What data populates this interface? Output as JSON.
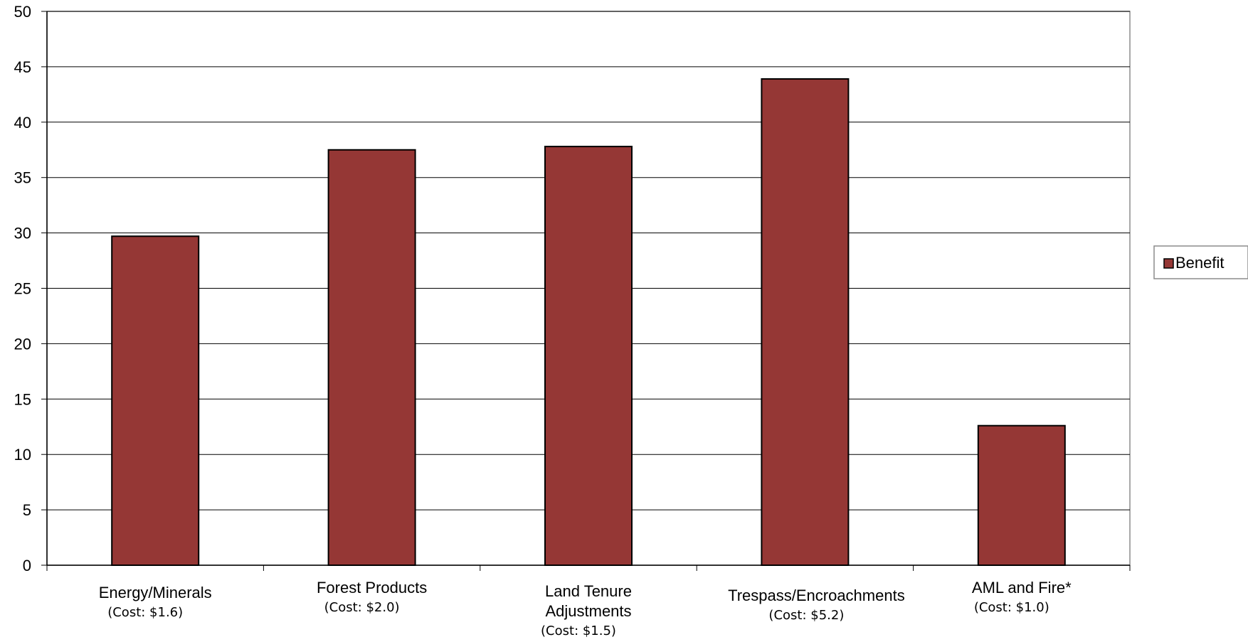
{
  "chart_data": {
    "type": "bar",
    "title": "",
    "xlabel": "",
    "ylabel": "",
    "ylim": [
      0,
      50
    ],
    "yticks": [
      0,
      5,
      10,
      15,
      20,
      25,
      30,
      35,
      40,
      45,
      50
    ],
    "grid": true,
    "legend_position": "right",
    "categories": [
      {
        "label_lines": [
          "Energy/Minerals"
        ],
        "cost_label": "(Cost: $1.6)"
      },
      {
        "label_lines": [
          "Forest Products"
        ],
        "cost_label": "(Cost: $2.0)"
      },
      {
        "label_lines": [
          "Land Tenure",
          "Adjustments"
        ],
        "cost_label": "(Cost: $1.5)"
      },
      {
        "label_lines": [
          "Trespass/Encroachments"
        ],
        "cost_label": "(Cost: $5.2)"
      },
      {
        "label_lines": [
          "AML and Fire*"
        ],
        "cost_label": "(Cost: $1.0)"
      }
    ],
    "series": [
      {
        "name": "Benefit",
        "color": "#953735",
        "values": [
          29.7,
          37.5,
          37.8,
          43.9,
          12.6
        ]
      }
    ]
  }
}
